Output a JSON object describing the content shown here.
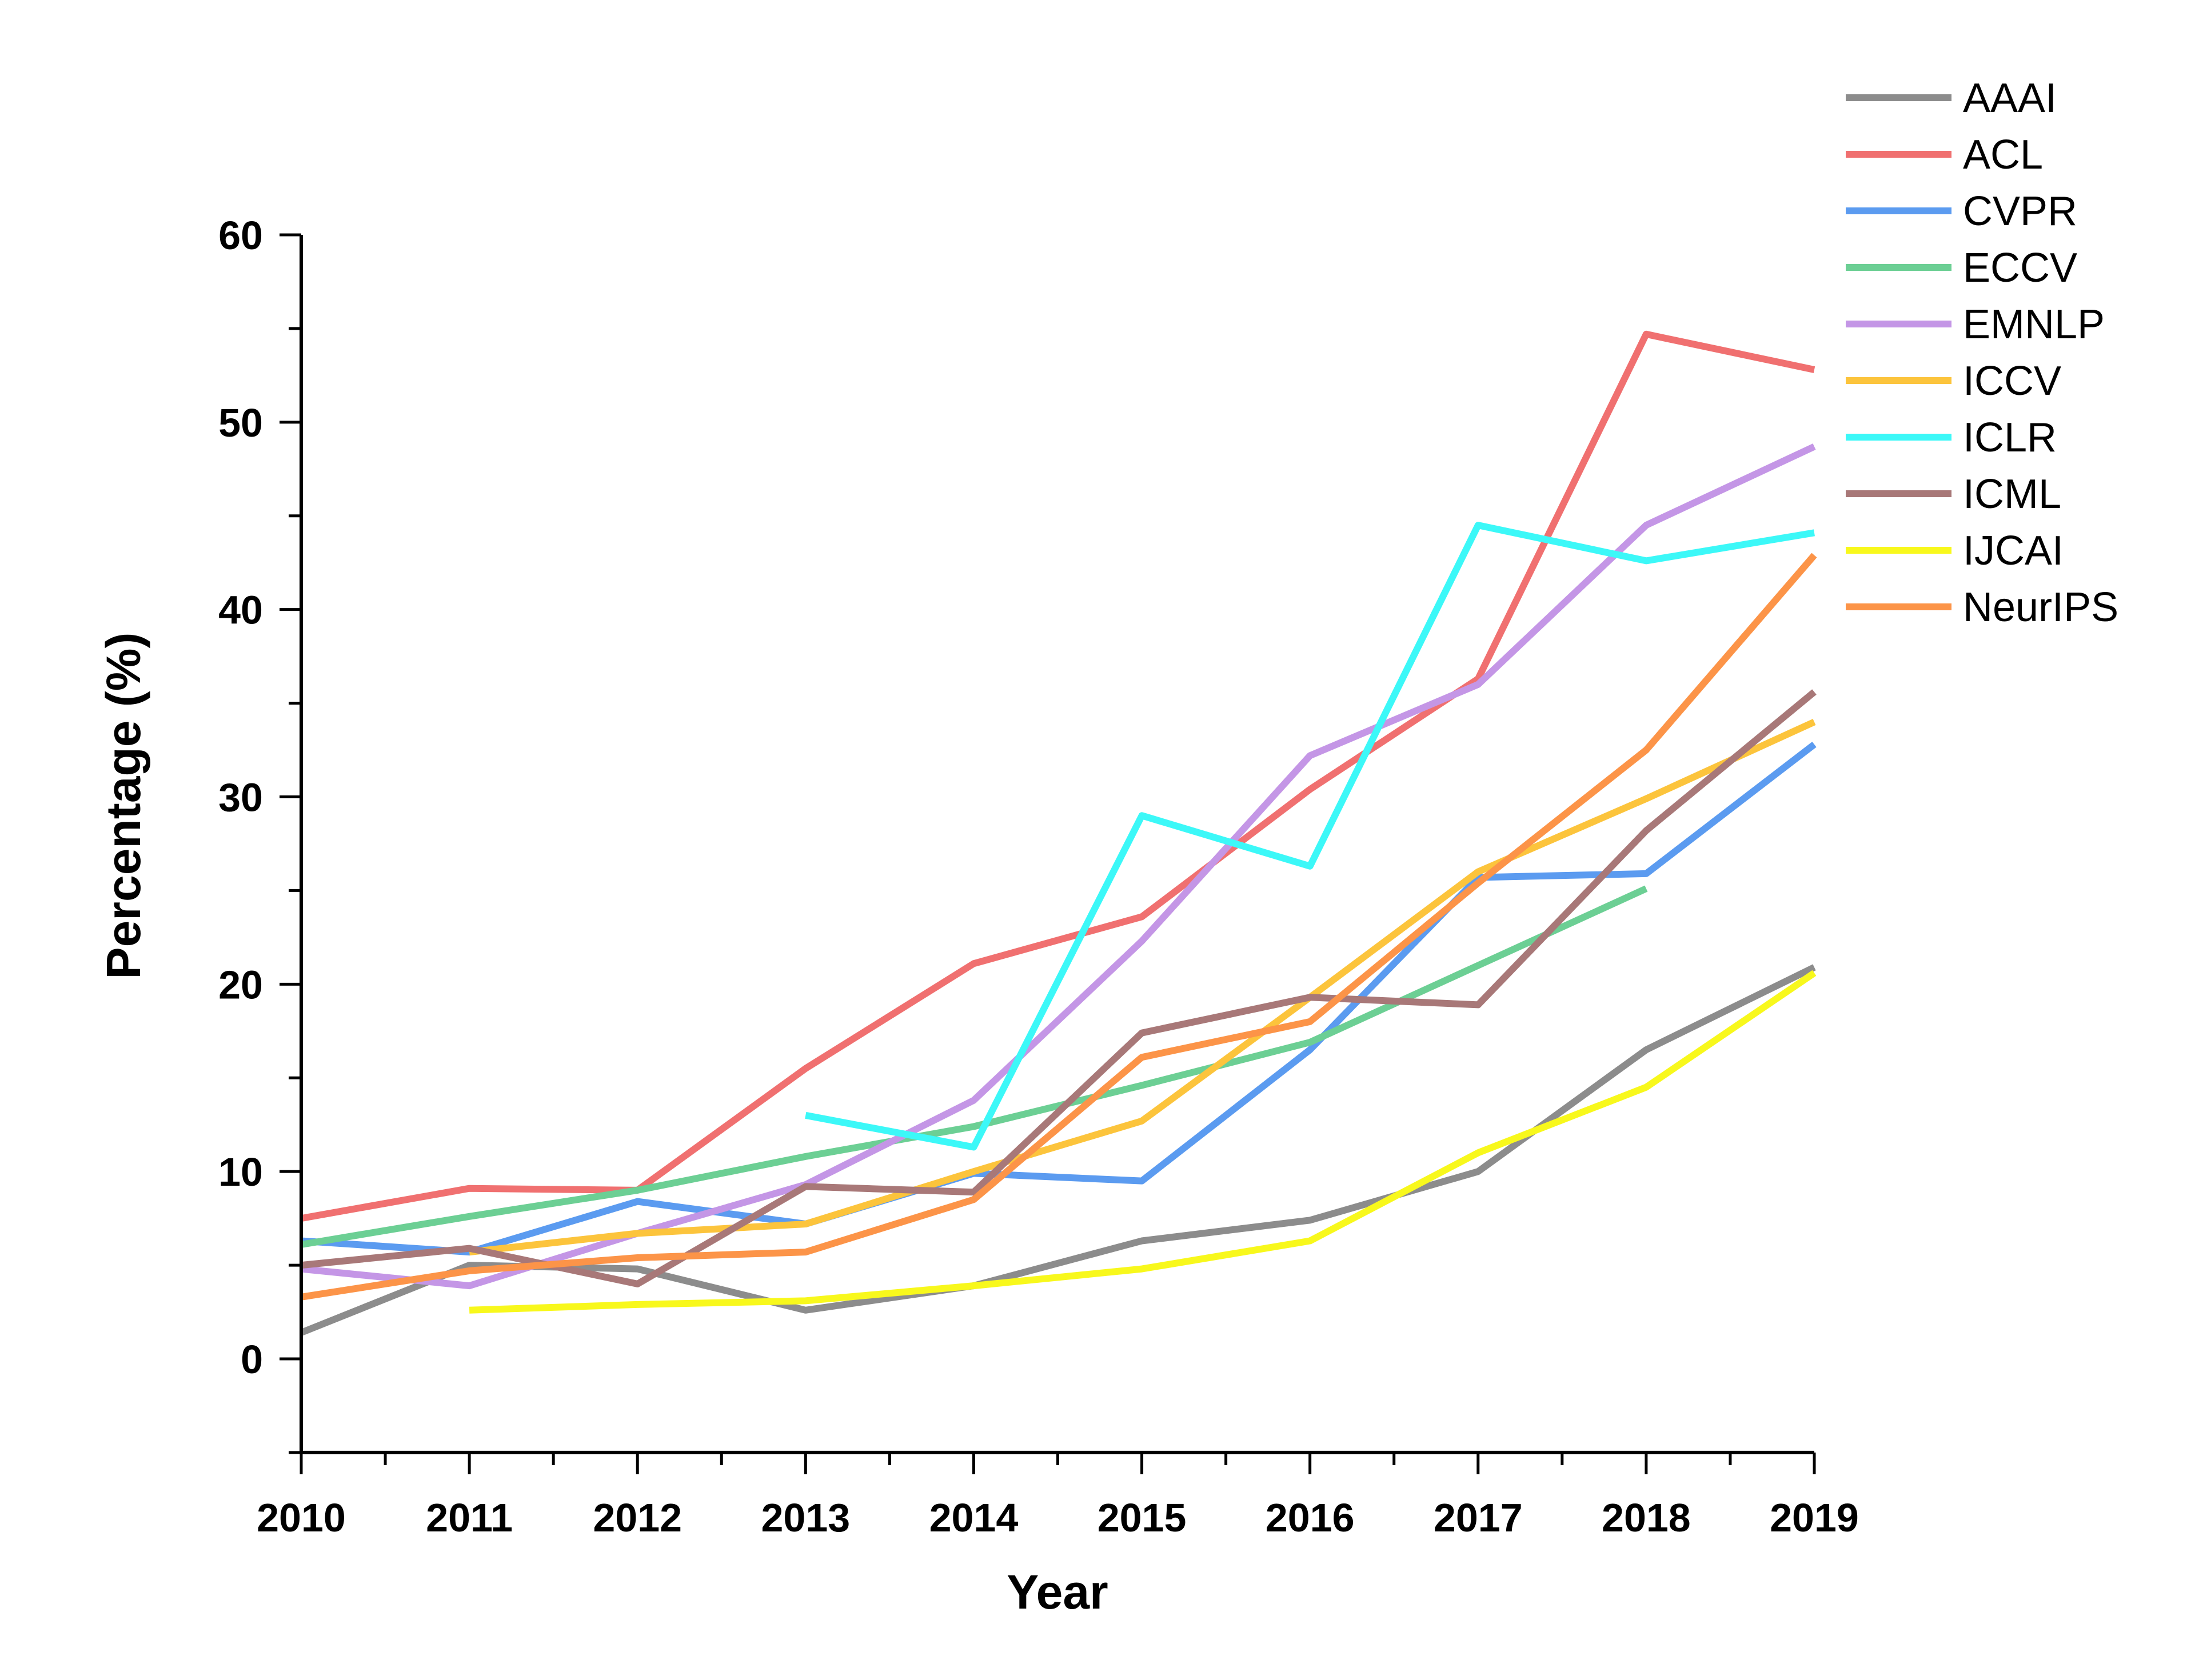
{
  "chart_data": {
    "type": "line",
    "title": "",
    "xlabel": "Year",
    "ylabel": "Percentage (%)",
    "xlim": [
      2010,
      2019
    ],
    "ylim": [
      -5,
      60
    ],
    "x": [
      2010,
      2011,
      2012,
      2013,
      2014,
      2015,
      2016,
      2017,
      2018,
      2019
    ],
    "x_ticks": [
      "2010",
      "2011",
      "2012",
      "2013",
      "2014",
      "2015",
      "2016",
      "2017",
      "2018",
      "2019"
    ],
    "y_ticks": [
      "0",
      "10",
      "20",
      "30",
      "40",
      "50",
      "60"
    ],
    "grid": false,
    "legend_placement": "top-right",
    "series": [
      {
        "name": "AAAI",
        "color": "#8c8c8c",
        "values": [
          1.4,
          5.0,
          4.8,
          2.6,
          3.9,
          6.3,
          7.4,
          10.0,
          16.5,
          20.9
        ]
      },
      {
        "name": "ACL",
        "color": "#f07070",
        "values": [
          7.5,
          9.1,
          9.0,
          15.5,
          21.1,
          23.6,
          30.4,
          36.3,
          54.7,
          52.8
        ]
      },
      {
        "name": "CVPR",
        "color": "#5b9bf0",
        "values": [
          6.3,
          5.7,
          8.4,
          7.2,
          9.9,
          9.5,
          16.5,
          25.7,
          25.9,
          32.8
        ]
      },
      {
        "name": "ECCV",
        "color": "#6ccf94",
        "values": [
          6.1,
          7.6,
          9.0,
          10.8,
          12.4,
          14.6,
          16.9,
          21.0,
          25.1,
          null
        ]
      },
      {
        "name": "EMNLP",
        "color": "#c496e6",
        "values": [
          4.8,
          3.9,
          6.7,
          9.3,
          13.8,
          22.3,
          32.2,
          36.0,
          44.5,
          48.7
        ]
      },
      {
        "name": "ICCV",
        "color": "#fcc43c",
        "values": [
          null,
          5.7,
          6.7,
          7.2,
          10.0,
          12.7,
          19.3,
          26.0,
          29.9,
          34.0
        ]
      },
      {
        "name": "ICLR",
        "color": "#3cf8f8",
        "values": [
          null,
          null,
          null,
          13.0,
          11.3,
          29.0,
          26.3,
          44.5,
          42.6,
          44.1
        ]
      },
      {
        "name": "ICML",
        "color": "#a87878",
        "values": [
          5.0,
          5.9,
          4.0,
          9.2,
          8.9,
          17.4,
          19.3,
          18.9,
          28.2,
          35.6
        ]
      },
      {
        "name": "IJCAI",
        "color": "#f8f81c",
        "values": [
          null,
          2.6,
          2.9,
          3.1,
          3.9,
          4.8,
          6.3,
          11.0,
          14.5,
          20.6
        ]
      },
      {
        "name": "NeurIPS",
        "color": "#fc9448",
        "values": [
          3.3,
          4.7,
          5.4,
          5.7,
          8.5,
          16.1,
          18.0,
          25.4,
          32.5,
          42.9
        ]
      }
    ]
  }
}
